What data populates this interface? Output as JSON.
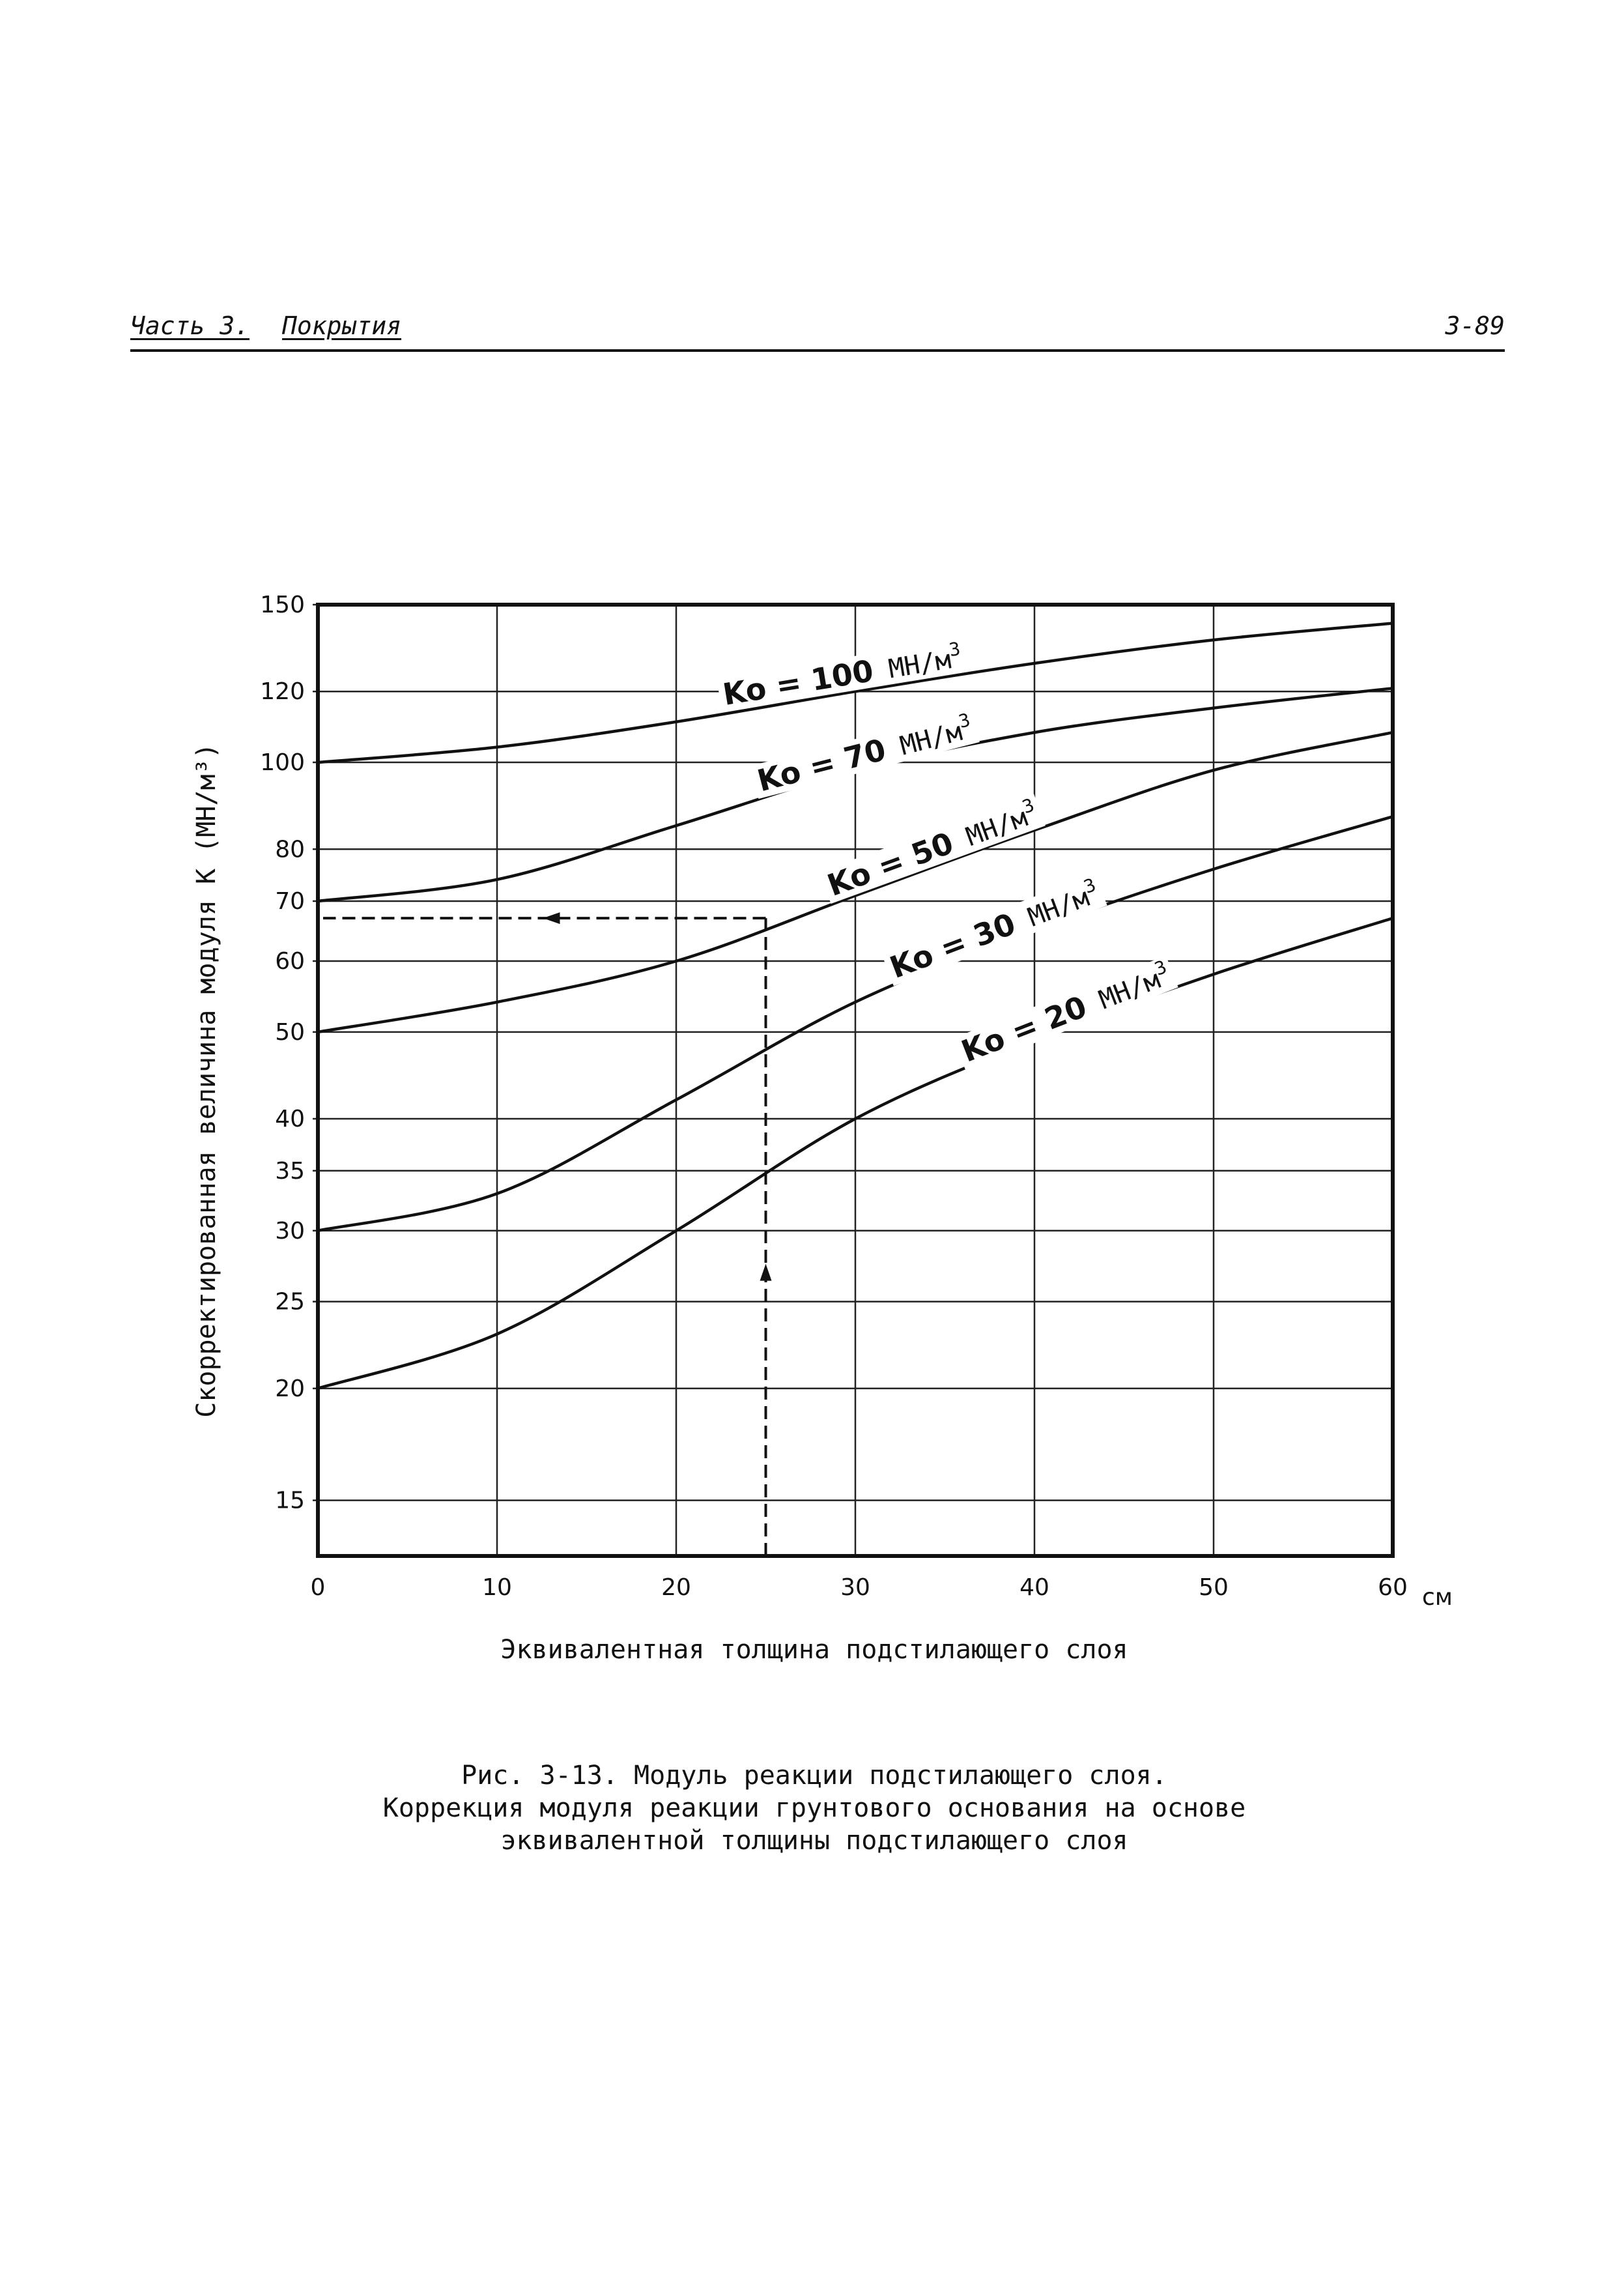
{
  "header": {
    "part": "Часть 3.",
    "section": "Покрытия",
    "page": "3-89"
  },
  "chart_data": {
    "type": "line",
    "ylabel": "Скорректированная величина модуля К (МН/м³)",
    "xlabel": "Эквивалентная толщина подстилающего слоя",
    "x_unit": "см",
    "xlim": [
      0,
      60
    ],
    "ylim": [
      13,
      150
    ],
    "y_scale": "log",
    "x_ticks": [
      0,
      10,
      20,
      30,
      40,
      50,
      60
    ],
    "x_tick_labels": [
      "0",
      "10",
      "20",
      "30",
      "40",
      "50",
      "60"
    ],
    "y_ticks": [
      15,
      20,
      25,
      30,
      35,
      40,
      50,
      60,
      70,
      80,
      100,
      120,
      150
    ],
    "y_tick_labels": [
      "15",
      "20",
      "25",
      "30",
      "35",
      "40",
      "50",
      "60",
      "70",
      "80",
      "100",
      "120",
      "150"
    ],
    "grid": true,
    "series": [
      {
        "name": "Ko = 100 МН/м³",
        "label_prefix": "Ko =",
        "label_value": "100",
        "label_unit": "МН/м",
        "label_exp": "3",
        "x": [
          0,
          10,
          20,
          30,
          40,
          50,
          60
        ],
        "y": [
          100,
          104,
          111,
          120,
          129,
          137,
          143
        ]
      },
      {
        "name": "Ko = 70 МН/м³",
        "label_prefix": "Ko =",
        "label_value": "70",
        "label_unit": "МН/м",
        "label_exp": "3",
        "x": [
          0,
          10,
          20,
          30,
          40,
          50,
          60
        ],
        "y": [
          70,
          74,
          85,
          98,
          108,
          115,
          121
        ]
      },
      {
        "name": "Ko = 50 МН/м³",
        "label_prefix": "Ko =",
        "label_value": "50",
        "label_unit": "МН/м",
        "label_exp": "3",
        "x": [
          0,
          10,
          20,
          30,
          40,
          50,
          60
        ],
        "y": [
          50,
          54,
          60,
          71,
          84,
          98,
          108
        ]
      },
      {
        "name": "Ko = 30 МН/м³",
        "label_prefix": "Ko =",
        "label_value": "30",
        "label_unit": "МН/м",
        "label_exp": "3",
        "x": [
          0,
          10,
          20,
          30,
          40,
          50,
          60
        ],
        "y": [
          30,
          33,
          42,
          54,
          65,
          76,
          87
        ]
      },
      {
        "name": "Ko = 20 МН/м³",
        "label_prefix": "Ko =",
        "label_value": "20",
        "label_unit": "МН/м",
        "label_exp": "3",
        "x": [
          0,
          10,
          20,
          30,
          40,
          50,
          60
        ],
        "y": [
          20,
          23,
          30,
          40,
          49,
          58,
          67
        ]
      }
    ],
    "example": {
      "x": 25,
      "start_y": 13,
      "curve_y": 67
    }
  },
  "caption": {
    "line1": "Рис. 3-13. Модуль реакции подстилающего слоя.",
    "line2": "Коррекция модуля реакции грунтового основания на основе",
    "line3": "эквивалентной толщины подстилающего слоя"
  }
}
